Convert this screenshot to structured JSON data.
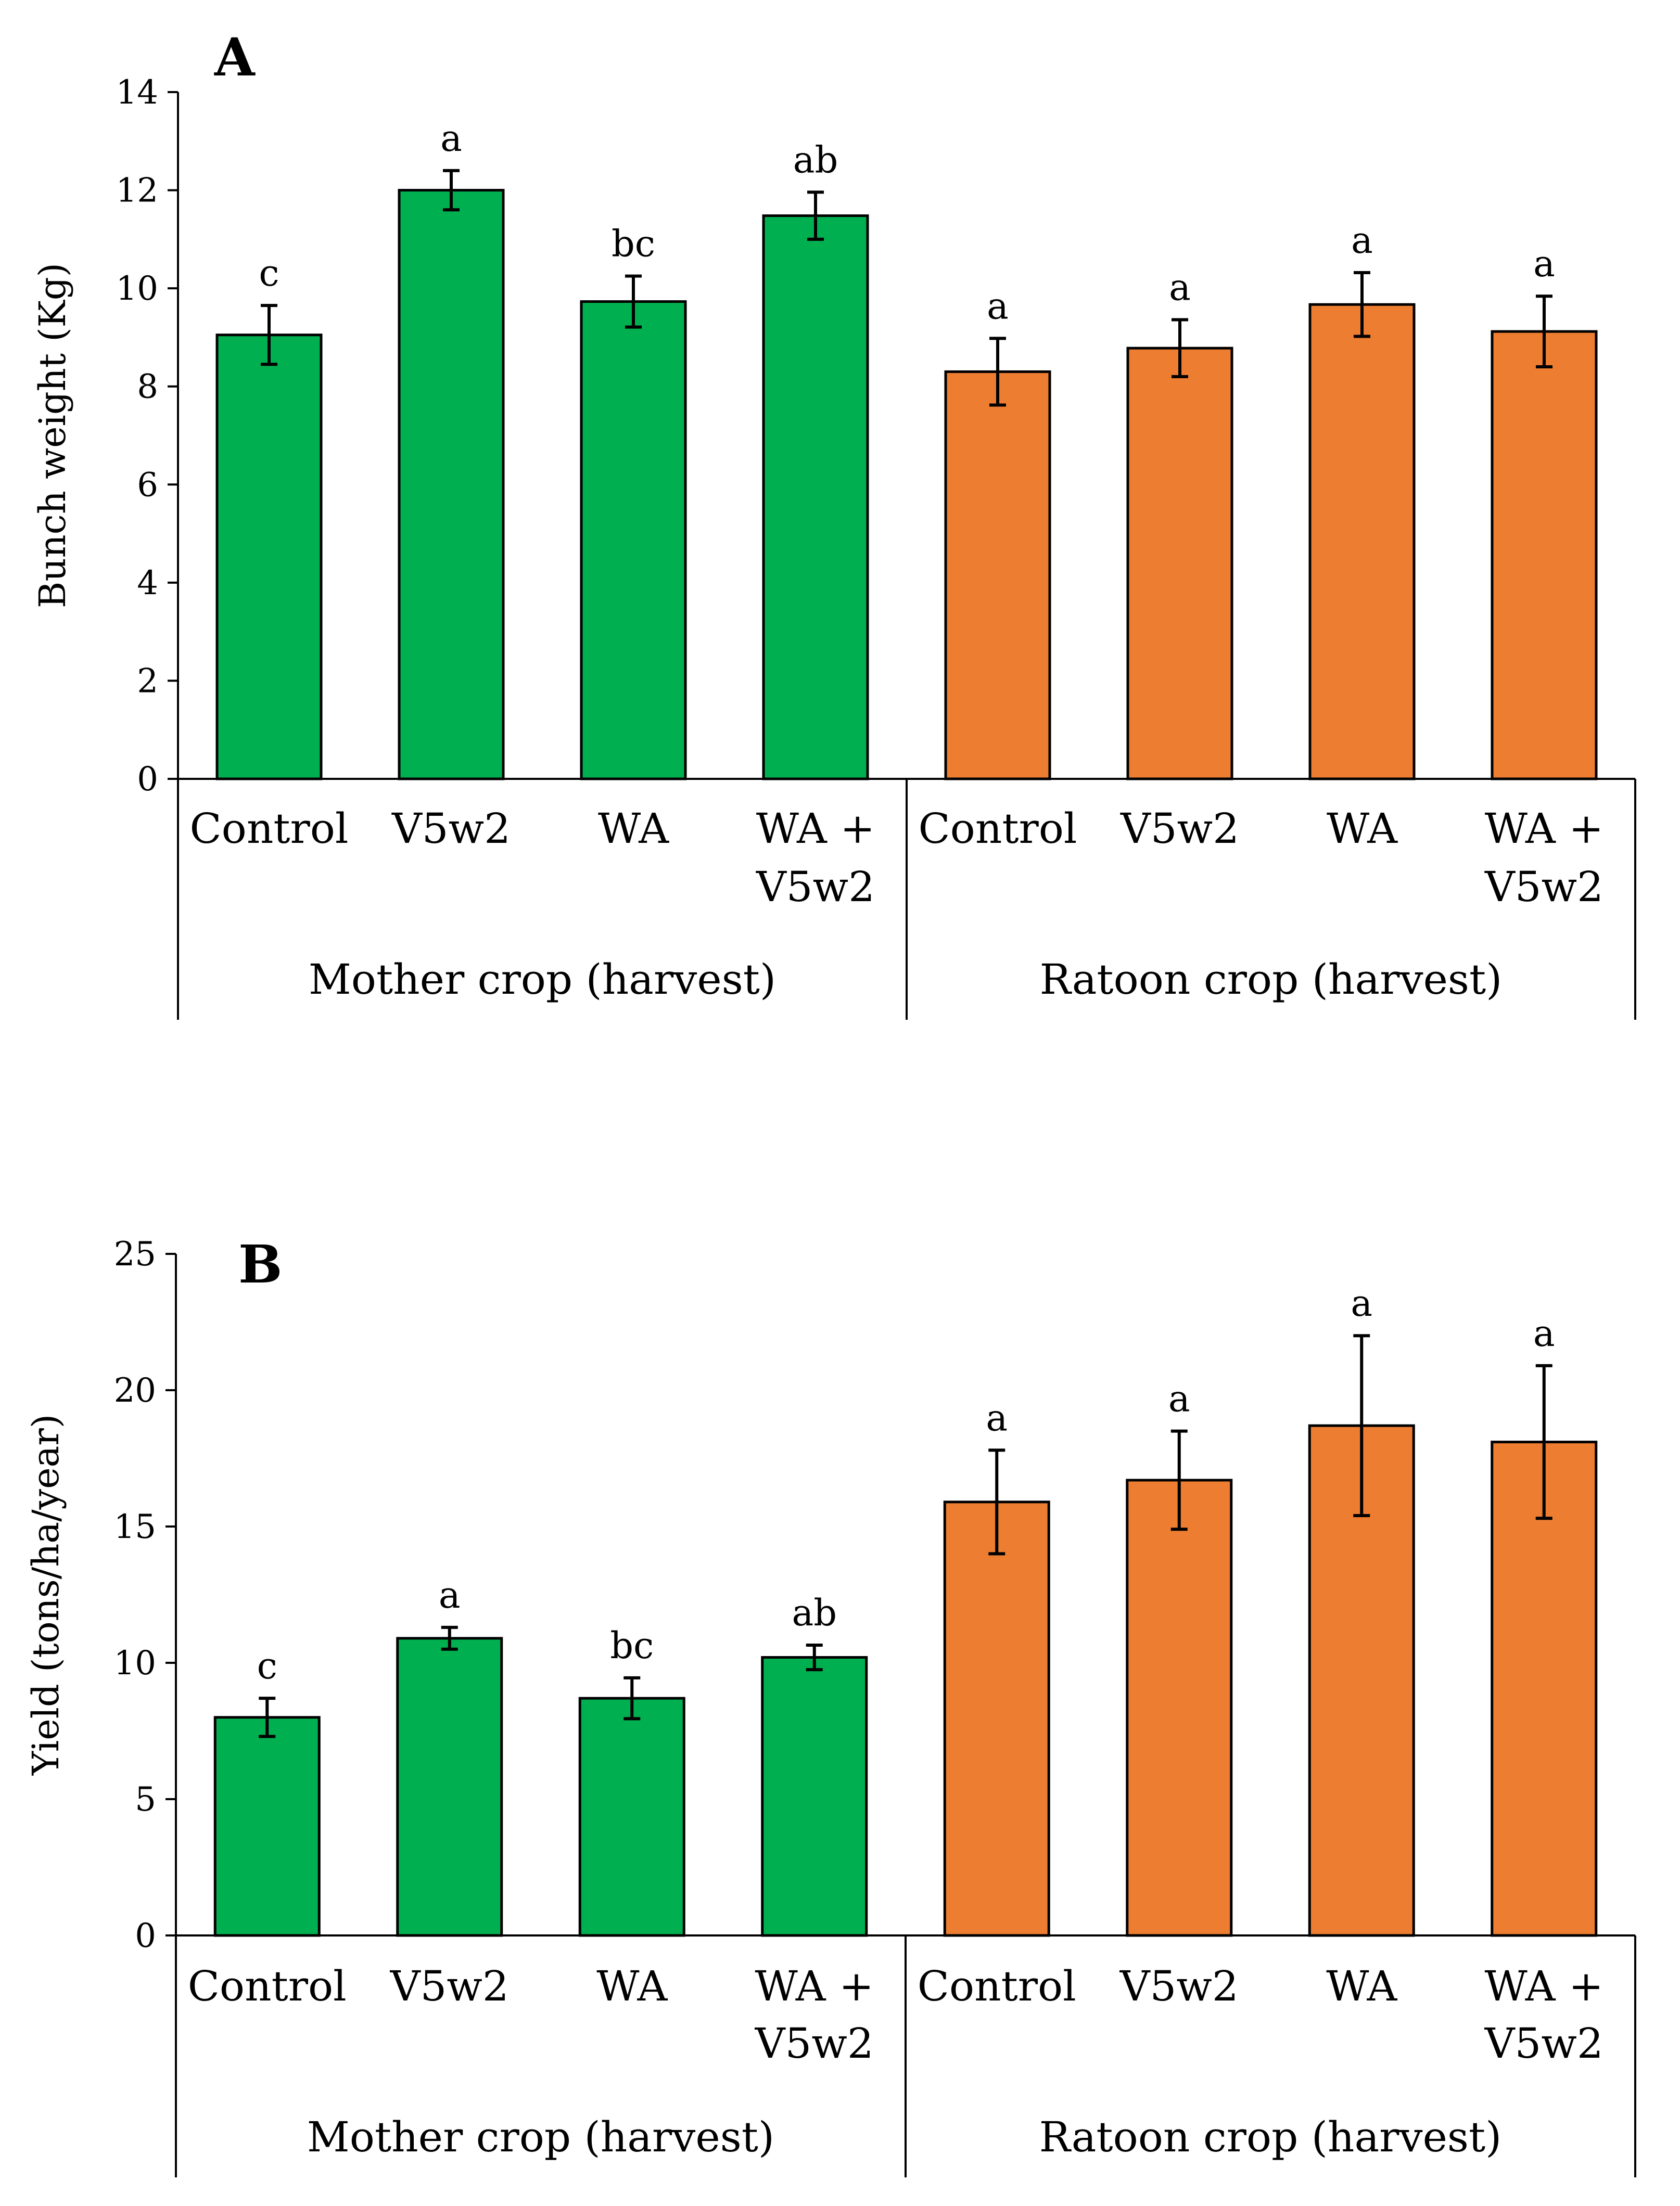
{
  "colors": {
    "mother": "#00B050",
    "ratoon": "#ED7D31",
    "axis": "#000000"
  },
  "chart_data": [
    {
      "type": "bar",
      "panel": "A",
      "title": "",
      "xlabel": "",
      "ylabel": "Bunch weight (Kg)",
      "ylim": [
        0,
        14
      ],
      "yticks": [
        "0",
        "2",
        "4",
        "6",
        "8",
        "10",
        "12",
        "14"
      ],
      "groups": [
        {
          "name": "Mother crop (harvest)",
          "categories": [
            "Control",
            "V5w2",
            "WA",
            "WA + V5w2"
          ]
        },
        {
          "name": "Ratoon crop (harvest)",
          "categories": [
            "Control",
            "V5w2",
            "WA",
            "WA + V5w2"
          ]
        }
      ],
      "category_lines": [
        [
          "Control"
        ],
        [
          "V5w2"
        ],
        [
          "WA"
        ],
        [
          "WA +",
          "V5w2"
        ],
        [
          "Control"
        ],
        [
          "V5w2"
        ],
        [
          "WA"
        ],
        [
          "WA +",
          "V5w2"
        ]
      ],
      "values": [
        9.05,
        12.0,
        9.73,
        11.48,
        8.3,
        8.78,
        9.67,
        9.12
      ],
      "errors": [
        0.6,
        0.4,
        0.52,
        0.48,
        0.68,
        0.58,
        0.65,
        0.72
      ],
      "letters": [
        "c",
        "a",
        "bc",
        "ab",
        "a",
        "a",
        "a",
        "a"
      ]
    },
    {
      "type": "bar",
      "panel": "B",
      "title": "",
      "xlabel": "",
      "ylabel": "Yield (tons/ha/year)",
      "ylim": [
        0,
        25
      ],
      "yticks": [
        "0",
        "5",
        "10",
        "15",
        "20",
        "25"
      ],
      "groups": [
        {
          "name": "Mother crop (harvest)",
          "categories": [
            "Control",
            "V5w2",
            "WA",
            "WA + V5w2"
          ]
        },
        {
          "name": "Ratoon crop (harvest)",
          "categories": [
            "Control",
            "V5w2",
            "WA",
            "WA + V5w2"
          ]
        }
      ],
      "category_lines": [
        [
          "Control"
        ],
        [
          "V5w2"
        ],
        [
          "WA"
        ],
        [
          "WA +",
          "V5w2"
        ],
        [
          "Control"
        ],
        [
          "V5w2"
        ],
        [
          "WA"
        ],
        [
          "WA +",
          "V5w2"
        ]
      ],
      "values": [
        8.0,
        10.9,
        8.7,
        10.2,
        15.9,
        16.7,
        18.7,
        18.1
      ],
      "errors": [
        0.7,
        0.4,
        0.75,
        0.45,
        1.9,
        1.8,
        3.3,
        2.8
      ],
      "letters": [
        "c",
        "a",
        "bc",
        "ab",
        "a",
        "a",
        "a",
        "a"
      ]
    }
  ]
}
